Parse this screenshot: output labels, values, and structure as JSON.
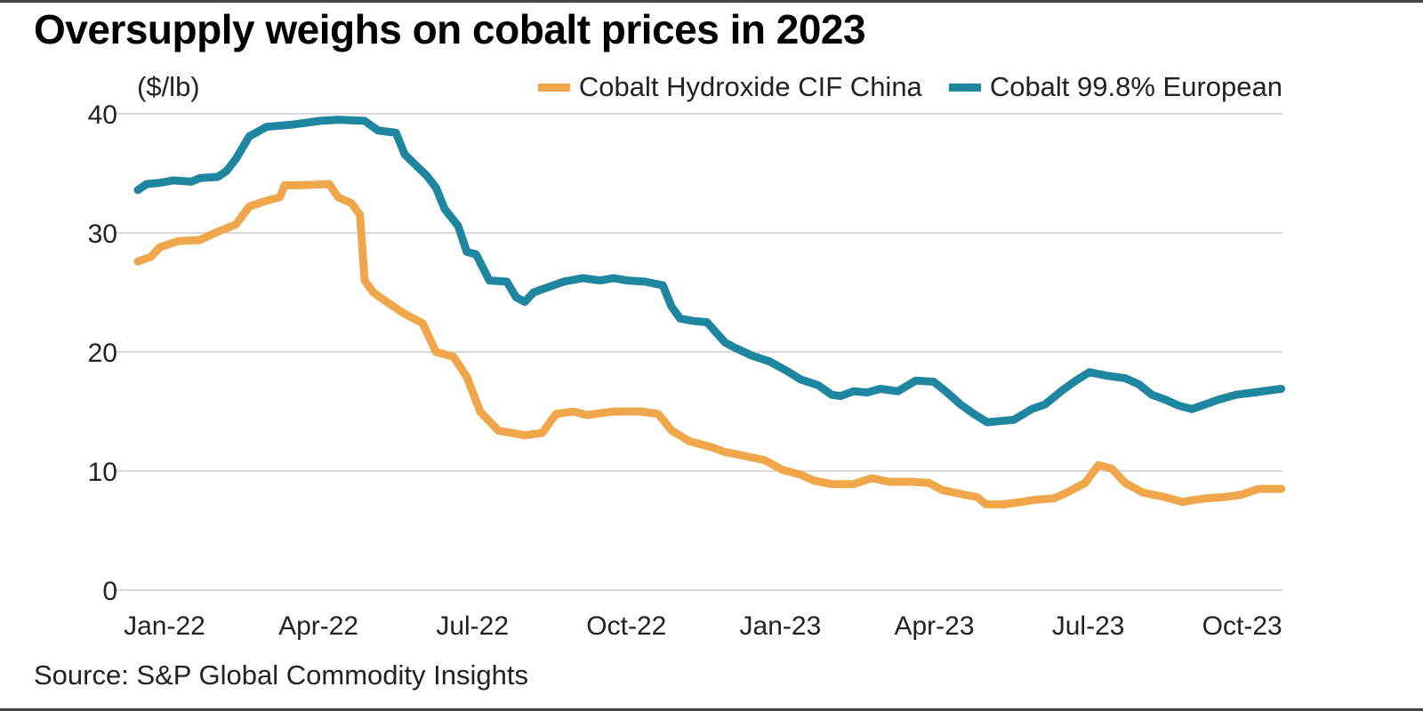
{
  "title": "Oversupply weighs on cobalt prices in 2023",
  "source": "Source: S&P Global Commodity Insights",
  "chart_data": {
    "type": "line",
    "title": "Oversupply weighs on cobalt prices in 2023",
    "ylabel": "($/lb)",
    "xlabel": "",
    "x_unit": "months since Jan-22",
    "xlim": [
      0,
      22.3
    ],
    "ylim": [
      0,
      40
    ],
    "yticks": [
      0,
      10,
      20,
      30,
      40
    ],
    "xticks": [
      {
        "label": "Jan-22",
        "x": 0
      },
      {
        "label": "Apr-22",
        "x": 3
      },
      {
        "label": "Jul-22",
        "x": 6
      },
      {
        "label": "Oct-22",
        "x": 9
      },
      {
        "label": "Jan-23",
        "x": 12
      },
      {
        "label": "Apr-23",
        "x": 15
      },
      {
        "label": "Jul-23",
        "x": 18
      },
      {
        "label": "Oct-23",
        "x": 21
      }
    ],
    "grid": true,
    "legend_position": "top-right",
    "series": [
      {
        "name": "Cobalt Hydroxide CIF China",
        "color": "#F0A64A",
        "x": [
          0,
          0.26,
          0.43,
          0.78,
          1.21,
          1.56,
          1.91,
          2.17,
          2.43,
          2.77,
          2.86,
          3.2,
          3.73,
          3.9,
          4.16,
          4.33,
          4.42,
          4.59,
          4.85,
          5.2,
          5.55,
          5.81,
          6.15,
          6.41,
          6.67,
          7.02,
          7.54,
          7.88,
          8.15,
          8.49,
          8.75,
          9.27,
          9.79,
          10.14,
          10.4,
          10.75,
          11.18,
          11.44,
          11.79,
          12.22,
          12.56,
          12.91,
          13.17,
          13.52,
          13.95,
          14.3,
          14.64,
          15.08,
          15.42,
          15.67,
          16.01,
          16.36,
          16.53,
          16.87,
          17.22,
          17.5,
          17.85,
          18.11,
          18.46,
          18.72,
          18.98,
          19.24,
          19.58,
          20.02,
          20.36,
          20.62,
          20.8,
          21.14,
          21.49,
          21.84,
          22.28
        ],
        "values": [
          27.6,
          28.0,
          28.8,
          29.3,
          29.4,
          30.1,
          30.7,
          32.2,
          32.6,
          33.0,
          34.0,
          34.0,
          34.1,
          33.0,
          32.5,
          31.5,
          26.0,
          25.0,
          24.2,
          23.2,
          22.4,
          20.0,
          19.6,
          17.9,
          15.0,
          13.4,
          13.0,
          13.2,
          14.8,
          15.0,
          14.7,
          15.0,
          15.0,
          14.8,
          13.4,
          12.5,
          12.0,
          11.6,
          11.3,
          10.9,
          10.1,
          9.7,
          9.2,
          8.9,
          8.9,
          9.4,
          9.1,
          9.1,
          9.0,
          8.4,
          8.1,
          7.8,
          7.2,
          7.2,
          7.4,
          7.6,
          7.7,
          8.2,
          9.0,
          10.5,
          10.2,
          9.0,
          8.2,
          7.8,
          7.4,
          7.6,
          7.7,
          7.8,
          8.0,
          8.5,
          8.5
        ]
      },
      {
        "name": "Cobalt 99.8% European",
        "color": "#1F86A0",
        "x": [
          0,
          0.17,
          0.43,
          0.69,
          1.04,
          1.21,
          1.56,
          1.73,
          1.91,
          2.17,
          2.51,
          3.03,
          3.55,
          3.9,
          4.42,
          4.68,
          5.03,
          5.2,
          5.46,
          5.63,
          5.81,
          5.98,
          6.24,
          6.41,
          6.59,
          6.85,
          7.19,
          7.37,
          7.54,
          7.71,
          8.04,
          8.3,
          8.67,
          9.01,
          9.27,
          9.53,
          9.88,
          10.23,
          10.4,
          10.57,
          10.83,
          11.09,
          11.44,
          11.61,
          11.96,
          12.31,
          12.65,
          12.91,
          13.26,
          13.52,
          13.69,
          13.95,
          14.21,
          14.47,
          14.81,
          15.16,
          15.51,
          15.77,
          16.03,
          16.29,
          16.55,
          16.81,
          17.07,
          17.42,
          17.68,
          18.02,
          18.28,
          18.54,
          18.89,
          19.24,
          19.5,
          19.76,
          20.02,
          20.28,
          20.54,
          20.8,
          21.06,
          21.4,
          21.75,
          22.28
        ],
        "values": [
          33.6,
          34.1,
          34.2,
          34.4,
          34.3,
          34.6,
          34.7,
          35.2,
          36.2,
          38.1,
          38.9,
          39.1,
          39.4,
          39.5,
          39.4,
          38.6,
          38.4,
          36.6,
          35.5,
          34.8,
          33.8,
          32.0,
          30.6,
          28.4,
          28.2,
          26.0,
          25.9,
          24.6,
          24.2,
          25.0,
          25.5,
          25.9,
          26.2,
          26.0,
          26.2,
          26.0,
          25.9,
          25.6,
          23.8,
          22.8,
          22.6,
          22.5,
          20.8,
          20.4,
          19.7,
          19.2,
          18.4,
          17.7,
          17.2,
          16.4,
          16.3,
          16.7,
          16.6,
          16.9,
          16.7,
          17.6,
          17.5,
          16.6,
          15.6,
          14.8,
          14.1,
          14.2,
          14.3,
          15.2,
          15.6,
          16.8,
          17.6,
          18.3,
          18.0,
          17.8,
          17.3,
          16.4,
          16.0,
          15.5,
          15.2,
          15.6,
          16.0,
          16.4,
          16.6,
          16.9
        ]
      }
    ]
  }
}
